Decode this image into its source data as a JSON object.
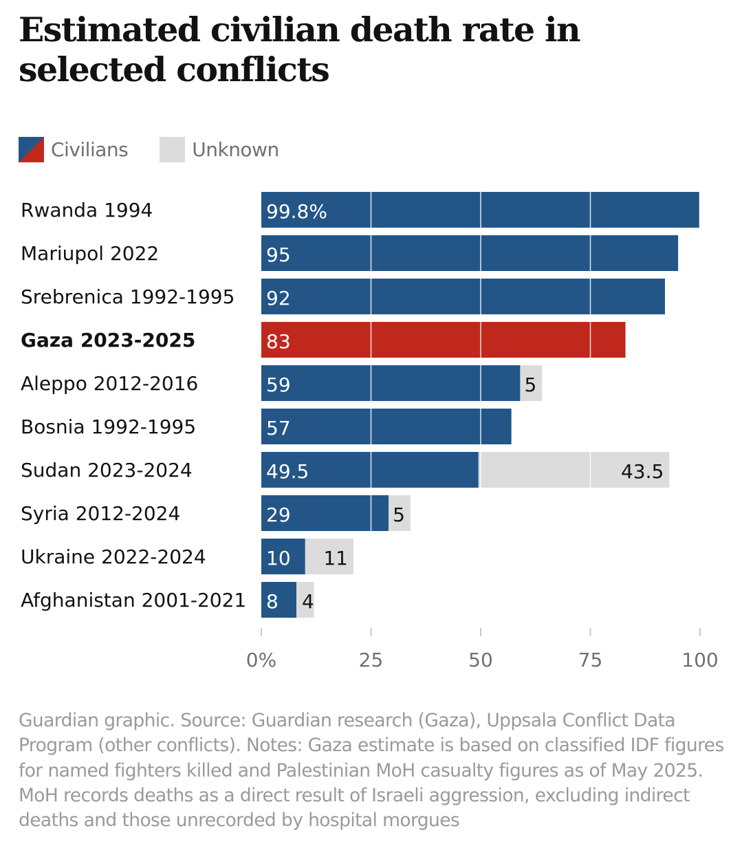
{
  "title": "Estimated civilian death rate in selected conflicts",
  "legend": {
    "civilians_label": "Civilians",
    "unknown_label": "Unknown",
    "civilians_icon": "split-swatch-blue-red",
    "unknown_icon": "grey-swatch"
  },
  "colors": {
    "civilians": "#235687",
    "highlight": "#c0281e",
    "unknown": "#dcdcdc",
    "gridline": "#ffffff",
    "axis_text": "#707070"
  },
  "chart_data": {
    "type": "bar",
    "orientation": "horizontal",
    "stacked": true,
    "title": "Estimated civilian death rate in selected conflicts",
    "xlabel": "",
    "ylabel": "",
    "xlim": [
      0,
      100
    ],
    "x_ticks": [
      0,
      25,
      50,
      75,
      100
    ],
    "x_tick_labels": [
      "0%",
      "25",
      "50",
      "75",
      "100"
    ],
    "grid": true,
    "legend_position": "top-left",
    "categories": [
      "Rwanda 1994",
      "Mariupol 2022",
      "Srebrenica 1992-1995",
      "Gaza 2023-2025",
      "Aleppo 2012-2016",
      "Bosnia 1992-1995",
      "Sudan 2023-2024",
      "Syria 2012-2024",
      "Ukraine 2022-2024",
      "Afghanistan 2001-2021"
    ],
    "highlighted_category": "Gaza 2023-2025",
    "series": [
      {
        "name": "Civilians",
        "values": [
          99.8,
          95,
          92,
          83,
          59,
          57,
          49.5,
          29,
          10,
          8
        ],
        "labels": [
          "99.8%",
          "95",
          "92",
          "83",
          "59",
          "57",
          "49.5",
          "29",
          "10",
          "8"
        ]
      },
      {
        "name": "Unknown",
        "values": [
          0,
          0,
          0,
          0,
          5,
          0,
          43.5,
          5,
          11,
          4
        ],
        "labels": [
          "",
          "",
          "",
          "",
          "5",
          "",
          "43.5",
          "5",
          "11",
          "4"
        ]
      }
    ]
  },
  "footnote": "Guardian graphic. Source: Guardian research (Gaza), Uppsala Conflict Data Program (other conflicts). Notes: Gaza estimate is based on classified IDF figures for named fighters killed and Palestinian MoH casualty figures as of May 2025. MoH records deaths as a direct result of Israeli aggression, excluding indirect deaths and those unrecorded by hospital morgues"
}
